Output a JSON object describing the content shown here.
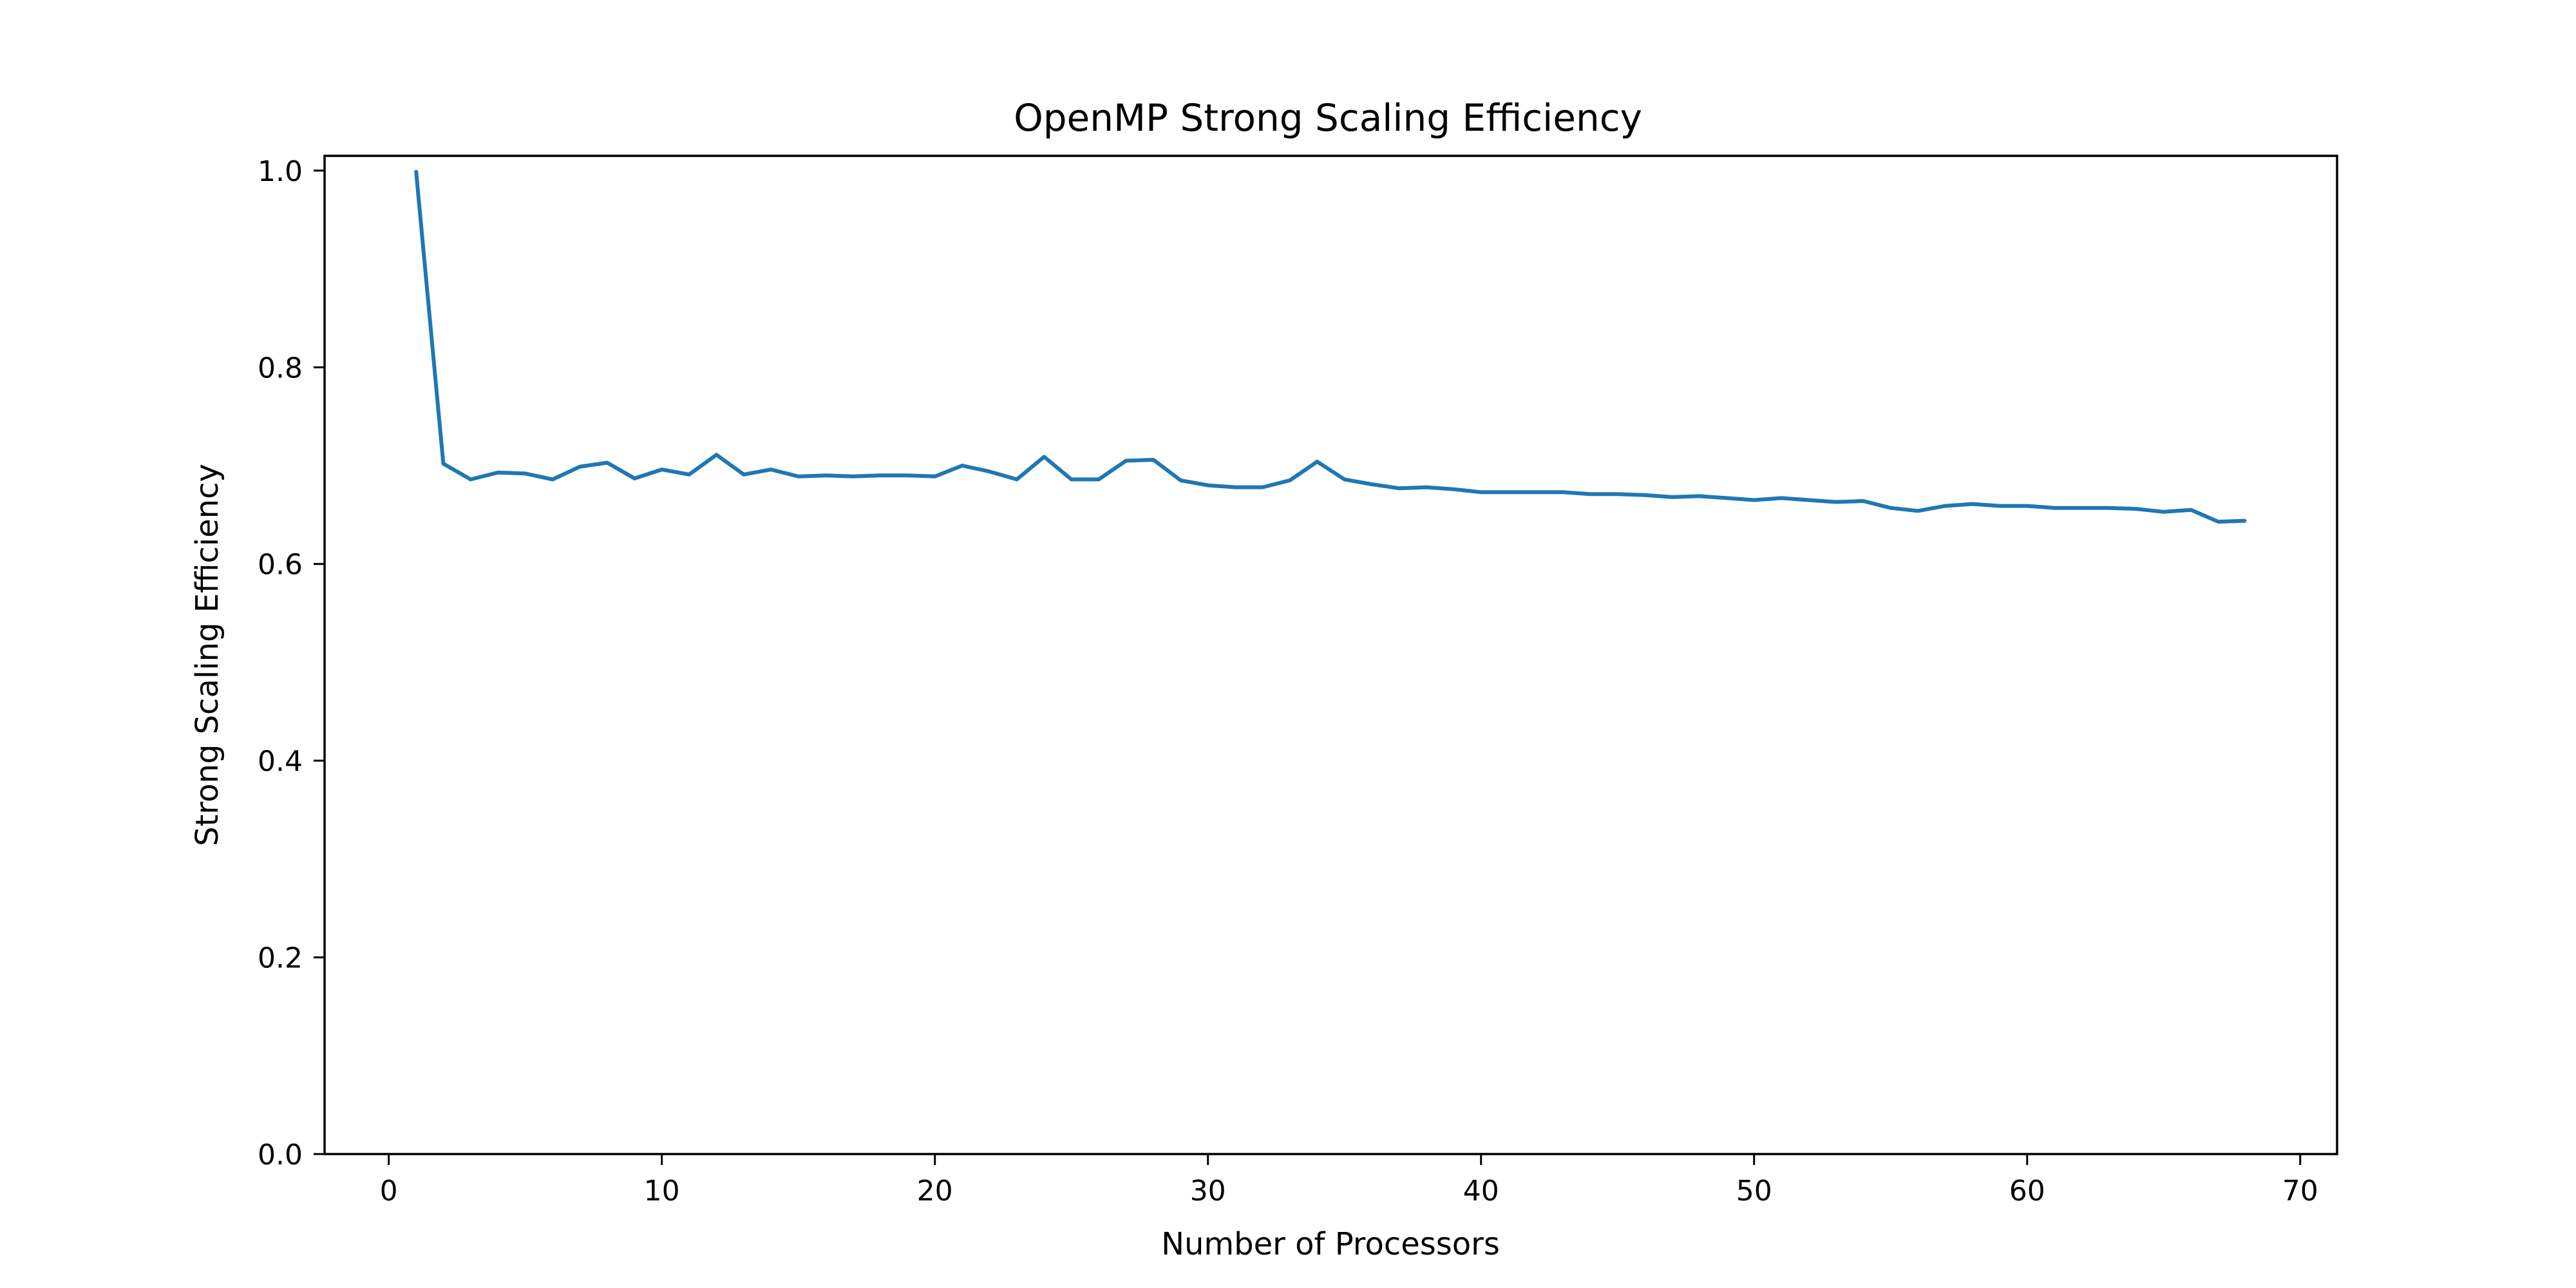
{
  "chart_data": {
    "type": "line",
    "title": "OpenMP Strong Scaling Efficiency",
    "xlabel": "Number of Processors",
    "ylabel": "Strong Scaling Efficiency",
    "xlim": [
      -2.35,
      71.35
    ],
    "ylim": [
      0.0,
      1.015
    ],
    "xticks": [
      0,
      10,
      20,
      30,
      40,
      50,
      60,
      70
    ],
    "yticks": [
      0.0,
      0.2,
      0.4,
      0.6,
      0.8,
      1.0
    ],
    "xtick_labels": [
      "0",
      "10",
      "20",
      "30",
      "40",
      "50",
      "60",
      "70"
    ],
    "ytick_labels": [
      "0.0",
      "0.2",
      "0.4",
      "0.6",
      "0.8",
      "1.0"
    ],
    "grid": false,
    "line_color": "#1f77b4",
    "series": [
      {
        "x": [
          1,
          2,
          3,
          4,
          5,
          6,
          7,
          8,
          9,
          10,
          11,
          12,
          13,
          14,
          15,
          16,
          17,
          18,
          19,
          20,
          21,
          22,
          23,
          24,
          25,
          26,
          27,
          28,
          29,
          30,
          31,
          32,
          33,
          34,
          35,
          36,
          37,
          38,
          39,
          40,
          41,
          42,
          43,
          44,
          45,
          46,
          47,
          48,
          49,
          50,
          51,
          52,
          53,
          54,
          55,
          56,
          57,
          58,
          59,
          60,
          61,
          62,
          63,
          64,
          65,
          66,
          67,
          68
        ],
        "values": [
          1.0,
          0.702,
          0.686,
          0.693,
          0.692,
          0.686,
          0.699,
          0.703,
          0.687,
          0.696,
          0.691,
          0.711,
          0.691,
          0.696,
          0.689,
          0.69,
          0.689,
          0.69,
          0.69,
          0.689,
          0.7,
          0.694,
          0.686,
          0.709,
          0.686,
          0.686,
          0.705,
          0.706,
          0.685,
          0.68,
          0.678,
          0.678,
          0.685,
          0.704,
          0.686,
          0.681,
          0.677,
          0.678,
          0.676,
          0.673,
          0.673,
          0.673,
          0.673,
          0.671,
          0.671,
          0.67,
          0.668,
          0.669,
          0.667,
          0.665,
          0.667,
          0.665,
          0.663,
          0.664,
          0.657,
          0.654,
          0.659,
          0.661,
          0.659,
          0.659,
          0.657,
          0.657,
          0.657,
          0.656,
          0.653,
          0.655,
          0.643,
          0.644
        ]
      }
    ]
  }
}
